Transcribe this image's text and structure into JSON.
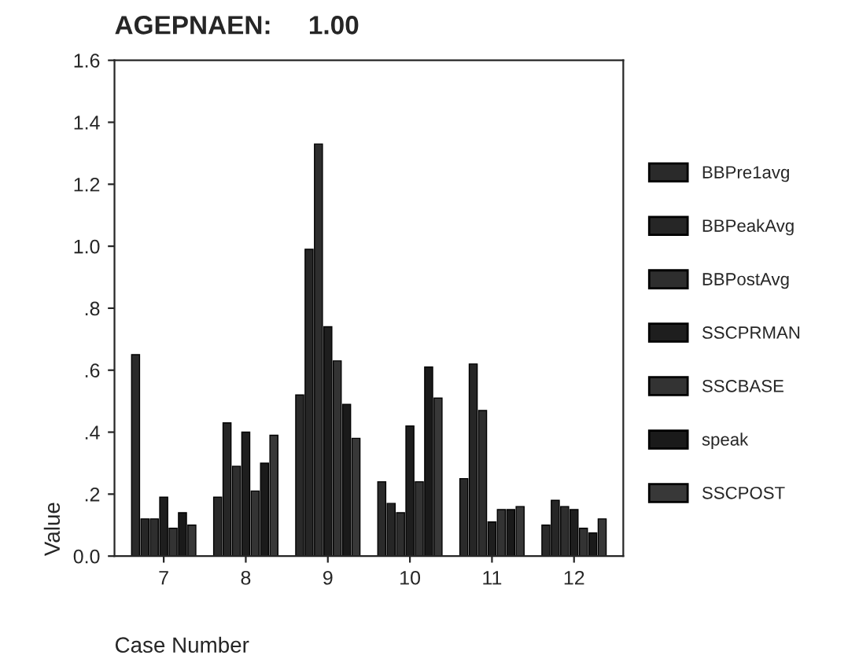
{
  "chart_data": {
    "type": "bar",
    "title": "AGEPNAEN:     1.00",
    "xlabel": "Case Number",
    "ylabel": "Value",
    "categories": [
      "7",
      "8",
      "9",
      "10",
      "11",
      "12"
    ],
    "series": [
      {
        "name": "BBPre1avg",
        "color": "#2a2a2a",
        "values": [
          0.65,
          0.19,
          0.52,
          0.24,
          0.25,
          0.1
        ]
      },
      {
        "name": "BBPeakAvg",
        "color": "#262626",
        "values": [
          0.12,
          0.43,
          0.99,
          0.17,
          0.62,
          0.18
        ]
      },
      {
        "name": "BBPostAvg",
        "color": "#2e2e2e",
        "values": [
          0.12,
          0.29,
          1.33,
          0.14,
          0.47,
          0.16
        ]
      },
      {
        "name": "SSCPRMAN",
        "color": "#1e1e1e",
        "values": [
          0.19,
          0.4,
          0.74,
          0.42,
          0.11,
          0.15
        ]
      },
      {
        "name": "SSCBASE",
        "color": "#333333",
        "values": [
          0.09,
          0.21,
          0.63,
          0.24,
          0.15,
          0.09
        ]
      },
      {
        "name": "speak",
        "color": "#1a1a1a",
        "values": [
          0.14,
          0.3,
          0.49,
          0.61,
          0.15,
          0.075
        ]
      },
      {
        "name": "SSCPOST",
        "color": "#383838",
        "values": [
          0.1,
          0.39,
          0.38,
          0.51,
          0.16,
          0.12
        ]
      }
    ],
    "ylim": [
      0,
      1.6
    ],
    "yticks": [
      {
        "value": 0,
        "label": "0.0"
      },
      {
        "value": 0.2,
        "label": ".2"
      },
      {
        "value": 0.4,
        "label": ".4"
      },
      {
        "value": 0.6,
        "label": ".6"
      },
      {
        "value": 0.8,
        "label": ".8"
      },
      {
        "value": 1.0,
        "label": "1.0"
      },
      {
        "value": 1.2,
        "label": "1.2"
      },
      {
        "value": 1.4,
        "label": "1.4"
      },
      {
        "value": 1.6,
        "label": "1.6"
      }
    ],
    "legend": "right"
  }
}
